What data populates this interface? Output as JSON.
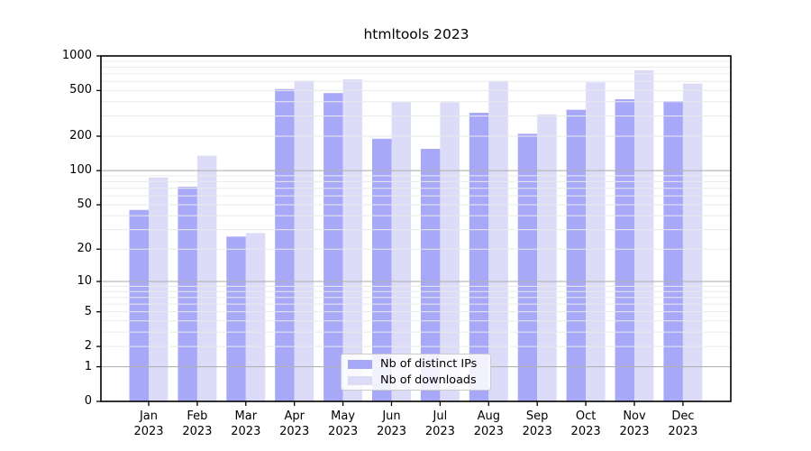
{
  "chart_data": {
    "type": "bar",
    "title": "htmltools 2023",
    "categories": [
      "Jan",
      "Feb",
      "Mar",
      "Apr",
      "May",
      "Jun",
      "Jul",
      "Aug",
      "Sep",
      "Oct",
      "Nov",
      "Dec"
    ],
    "year_label": "2023",
    "yscale": "log1p",
    "ylim": [
      0,
      1000
    ],
    "yticks": [
      0,
      1,
      2,
      5,
      10,
      20,
      50,
      100,
      200,
      500,
      1000
    ],
    "grid": "both, minor light / decade majors darker, drawn over bars",
    "legend_position": "lower center",
    "series": [
      {
        "name": "Nb of distinct IPs",
        "color": "#a8a8f8",
        "values": [
          45,
          72,
          26,
          515,
          475,
          190,
          155,
          320,
          210,
          340,
          420,
          405
        ]
      },
      {
        "name": "Nb of downloads",
        "color": "#dcdcf8",
        "values": [
          87,
          135,
          28,
          610,
          625,
          400,
          395,
          605,
          310,
          590,
          750,
          575
        ]
      }
    ],
    "colors": {
      "major_grid": "#b2b2b2",
      "minor_grid": "#eaeaea",
      "spine": "#000000",
      "background": "#ffffff"
    }
  }
}
